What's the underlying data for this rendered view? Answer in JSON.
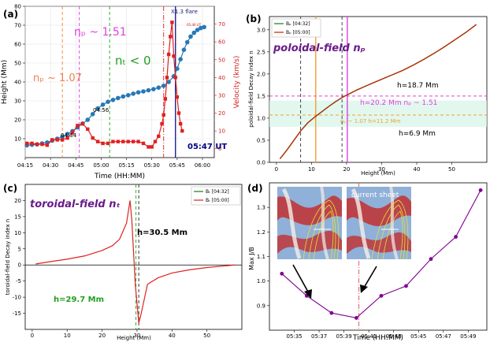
{
  "chart_data": [
    {
      "panel": "(a)",
      "type": "line",
      "xlabel": "Time (HH:MM)",
      "ylabel": "Height (Mm)",
      "y2label": "Velocity (km/s)",
      "xticks": [
        "04:15",
        "04:30",
        "04:45",
        "05:00",
        "05:15",
        "05:30",
        "05:45",
        "06:00"
      ],
      "xlim": [
        255,
        367
      ],
      "ylim": [
        0,
        80
      ],
      "y2lim": [
        -5,
        80
      ],
      "yticks": [
        10,
        20,
        30,
        40,
        50,
        60,
        70,
        80
      ],
      "y2ticks": [
        0,
        10,
        20,
        30,
        40,
        50,
        60,
        70
      ],
      "grid": true,
      "series": [
        {
          "kind": "height",
          "color": "#2878b5",
          "axis": "left",
          "x": [
            256,
            259,
            262,
            265,
            268,
            271,
            274,
            277,
            280,
            283,
            286,
            289,
            292,
            295,
            298,
            301,
            304,
            307,
            310,
            313,
            316,
            319,
            322,
            325,
            328,
            331,
            334,
            337,
            340,
            343,
            345,
            347,
            349,
            351,
            353,
            355,
            357,
            359,
            361
          ],
          "y": [
            6.5,
            6.8,
            7,
            7.5,
            8,
            9,
            10,
            11,
            12.5,
            14,
            16,
            18,
            20,
            23,
            26,
            28,
            29.5,
            30.5,
            31.5,
            32.3,
            33,
            33.8,
            34.5,
            35,
            35.6,
            36.2,
            37,
            38,
            40,
            43,
            47,
            52,
            57,
            61,
            64,
            66,
            67.5,
            68.5,
            69
          ]
        },
        {
          "kind": "velocity",
          "color": "#e02020",
          "axis": "right",
          "x": [
            256,
            259,
            262,
            265,
            268,
            271,
            274,
            277,
            280,
            283,
            286,
            289,
            292,
            295,
            298,
            301,
            304,
            307,
            310,
            313,
            316,
            319,
            322,
            325,
            328,
            330,
            332,
            334,
            336,
            337,
            338,
            339,
            340,
            341,
            342,
            343,
            344,
            345,
            346,
            347,
            348
          ],
          "y": [
            3,
            3,
            2.5,
            2.5,
            2,
            5,
            5,
            5,
            6,
            9,
            13,
            14,
            11,
            6,
            4,
            3,
            3,
            4,
            4,
            4,
            4,
            4,
            4,
            3,
            1,
            1,
            4,
            7,
            14,
            19,
            28,
            40,
            53,
            63,
            71,
            52,
            40,
            29,
            20,
            14,
            10
          ]
        }
      ],
      "vlines": [
        {
          "x": 277,
          "color": "#f08030",
          "style": "dashed"
        },
        {
          "x": 287,
          "color": "#e040e0",
          "style": "dashed"
        },
        {
          "x": 305,
          "color": "#20a020",
          "style": "dashed"
        },
        {
          "x": 337,
          "color": "#e02020",
          "style": "dashdot"
        },
        {
          "x": 344,
          "color": "#000080",
          "style": "solid"
        }
      ],
      "annotations": {
        "np_15": "nₚ ~ 1.51",
        "n_t": "nₜ < 0",
        "np_107": "nₚ ~ 1.07",
        "t0434": "04:34",
        "t0456": "04:56",
        "flare": "X1.3 flare",
        "tiny": "05:46 UT",
        "ut": "05:47 UT"
      }
    },
    {
      "panel": "(b)",
      "type": "line",
      "title": "poloidal-field nₚ",
      "xlabel": "Height (Mm)",
      "ylabel": "poloidal-field Decay index n",
      "xlim": [
        -2,
        60
      ],
      "ylim": [
        0,
        3.3
      ],
      "xticks": [
        0,
        10,
        20,
        30,
        40,
        50
      ],
      "yticks": [
        0.0,
        0.5,
        1.0,
        1.5,
        2.0,
        2.5,
        3.0
      ],
      "legend": {
        "position": "top-left",
        "entries": [
          "Bₚ [04:32]",
          "Bₚ [05:00]"
        ]
      },
      "series": [
        {
          "name": "Bₚ [04:32]",
          "color": "#1a7a1a",
          "x": [
            1,
            3,
            5,
            7,
            9,
            11,
            13,
            15,
            17,
            19,
            21,
            23,
            25,
            27,
            30,
            33,
            36,
            39,
            42,
            45,
            48,
            51,
            54,
            57
          ],
          "y": [
            0.08,
            0.28,
            0.5,
            0.72,
            0.9,
            1.03,
            1.15,
            1.27,
            1.38,
            1.48,
            1.56,
            1.64,
            1.71,
            1.78,
            1.88,
            1.98,
            2.08,
            2.2,
            2.33,
            2.47,
            2.62,
            2.78,
            2.94,
            3.12
          ]
        },
        {
          "name": "Bₚ [05:00]",
          "color": "#cc2200",
          "x": [
            1,
            3,
            5,
            7,
            9,
            11,
            13,
            15,
            17,
            19,
            21,
            23,
            25,
            27,
            30,
            33,
            36,
            39,
            42,
            45,
            48,
            51,
            54,
            57
          ],
          "y": [
            0.08,
            0.28,
            0.5,
            0.72,
            0.9,
            1.03,
            1.15,
            1.27,
            1.38,
            1.48,
            1.56,
            1.64,
            1.71,
            1.78,
            1.88,
            1.98,
            2.08,
            2.2,
            2.33,
            2.47,
            2.62,
            2.78,
            2.94,
            3.12
          ]
        }
      ],
      "hband": [
        0.8,
        1.4
      ],
      "hlines": [
        {
          "y": 1.5,
          "color": "#e040e0"
        },
        {
          "y": 1.07,
          "color": "#f0a030"
        }
      ],
      "vlines": [
        {
          "x": 6.9,
          "color": "#333333",
          "style": "dashed"
        },
        {
          "x": 11.2,
          "color": "#f0a030",
          "style": "solid"
        },
        {
          "x": 18.7,
          "color": "#333333",
          "style": "dashed"
        },
        {
          "x": 20.2,
          "color": "#e040e0",
          "style": "solid"
        }
      ],
      "annotations": {
        "h187": "h=18.7 Mm",
        "h202": "h=20.2 Mm  nₚ ~ 1.51",
        "h112": "nₚ ~ 1.07       h=11.2 Mm",
        "h69": "h=6.9 Mm"
      }
    },
    {
      "panel": "(c)",
      "type": "line",
      "title": "toroidal-field nₜ",
      "xlabel": "Height (Mm)",
      "ylabel": "toroidal-field Decay index n",
      "xlim": [
        -2,
        60
      ],
      "ylim": [
        -20,
        25
      ],
      "xticks": [
        0,
        10,
        20,
        30,
        40,
        50
      ],
      "yticks": [
        -15,
        -10,
        -5,
        0,
        5,
        10,
        15,
        20
      ],
      "legend": {
        "position": "top-right",
        "entries": [
          "Bₜ [04:32]",
          "Bₜ [05:00]"
        ]
      },
      "series": [
        {
          "name": "Bₜ [04:32]",
          "color": "#1a7a1a",
          "x": [],
          "y": []
        },
        {
          "name": "Bₜ [05:00]",
          "color": "#dd2222",
          "x": [
            1,
            5,
            10,
            15,
            20,
            23,
            25,
            27,
            28,
            28.5,
            29,
            29.5,
            30,
            30.5,
            31,
            33,
            36,
            40,
            45,
            50,
            55,
            58
          ],
          "y": [
            0.3,
            1,
            1.8,
            2.8,
            4.5,
            6,
            8,
            13,
            20,
            14,
            4,
            -6,
            -12,
            -18,
            -16,
            -6,
            -4,
            -2.5,
            -1.5,
            -0.8,
            -0.3,
            0
          ]
        }
      ],
      "hlines": [
        {
          "y": 0,
          "color": "#000000"
        }
      ],
      "vlines": [
        {
          "x": 29.7,
          "color": "#20a020",
          "style": "dashed"
        },
        {
          "x": 30.5,
          "color": "#222222",
          "style": "dashed"
        }
      ],
      "annotations": {
        "h305": "h=30.5 Mm",
        "h297": "h=29.7 Mm"
      }
    },
    {
      "panel": "(d)",
      "type": "line",
      "xlabel": "Time (HH:MM)",
      "ylabel": "Max  J/B",
      "xticks": [
        "05:35",
        "05:37",
        "05:39",
        "05:41",
        "05:43",
        "05:45",
        "05:47",
        "05:49"
      ],
      "xlim": [
        333,
        350.5
      ],
      "ylim": [
        0.8,
        1.4
      ],
      "yticks": [
        0.9,
        1.0,
        1.1,
        1.2,
        1.3
      ],
      "series": [
        {
          "color": "#800090",
          "x": [
            334,
            336,
            338,
            340,
            342,
            344,
            346,
            348,
            350
          ],
          "y": [
            1.03,
            0.94,
            0.87,
            0.85,
            0.94,
            0.98,
            1.09,
            1.18,
            1.37
          ]
        }
      ],
      "vlines": [
        {
          "x": 340.2,
          "color": "#e06060",
          "style": "dashdot"
        }
      ],
      "annotations": {
        "inset_label": "current sheet"
      }
    }
  ]
}
